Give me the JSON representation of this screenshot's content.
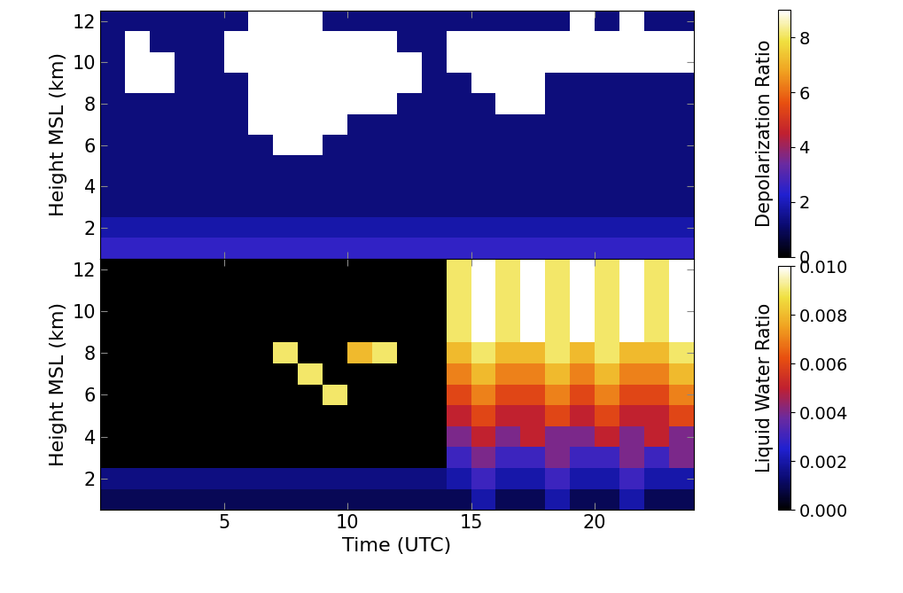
{
  "chart_data": [
    {
      "type": "heatmap",
      "ylabel": "Height MSL (km)",
      "tick_labels": "y",
      "xlim": [
        0,
        24
      ],
      "ylim": [
        0.5,
        12.5
      ],
      "xticks": [
        5,
        10,
        15,
        20
      ],
      "yticks": [
        2,
        4,
        6,
        8,
        10,
        12
      ],
      "time_edges": [
        0,
        1,
        2,
        3,
        4,
        5,
        6,
        7,
        8,
        9,
        10,
        11,
        12,
        13,
        14,
        15,
        16,
        17,
        18,
        19,
        20,
        21,
        22,
        23,
        24
      ],
      "height_edges": [
        0.5,
        1.5,
        2.5,
        3.5,
        4.5,
        5.5,
        6.5,
        7.5,
        8.5,
        9.5,
        10.5,
        11.5,
        12.5
      ],
      "cells": [
        [
          2.5,
          2.5,
          2.5,
          2.5,
          2.5,
          2.5,
          2.5,
          2.5,
          2.5,
          2.5,
          2.5,
          2.5,
          2.5,
          2.5,
          2.5,
          2.5,
          2.5,
          2.5,
          2.5,
          2.5,
          2.5,
          2.5,
          2.5,
          2.5
        ],
        [
          1.8,
          1.8,
          1.8,
          1.8,
          1.8,
          1.8,
          1.8,
          1.8,
          1.8,
          1.8,
          1.8,
          1.8,
          1.8,
          1.8,
          1.8,
          1.8,
          1.8,
          1.8,
          1.8,
          1.8,
          1.8,
          1.8,
          1.8,
          1.8
        ],
        [
          1.3,
          1.3,
          1.3,
          1.3,
          1.3,
          1.3,
          1.3,
          1.3,
          1.3,
          1.3,
          1.3,
          1.3,
          1.3,
          1.3,
          1.3,
          1.3,
          1.3,
          1.3,
          1.3,
          1.3,
          1.3,
          1.3,
          1.3,
          1.3
        ],
        [
          1.3,
          1.3,
          1.3,
          1.3,
          1.3,
          1.3,
          1.3,
          1.3,
          1.3,
          1.3,
          1.3,
          1.3,
          1.3,
          1.3,
          1.3,
          1.3,
          1.3,
          1.3,
          1.3,
          1.3,
          1.3,
          1.3,
          1.3,
          1.3
        ],
        [
          1.3,
          1.3,
          1.3,
          1.3,
          1.3,
          1.3,
          1.3,
          1.3,
          1.3,
          1.3,
          1.3,
          1.3,
          1.3,
          1.3,
          1.3,
          1.3,
          1.3,
          1.3,
          1.3,
          1.3,
          1.3,
          1.3,
          1.3,
          1.3
        ],
        [
          1.3,
          1.3,
          1.3,
          1.3,
          1.3,
          1.3,
          1.3,
          9,
          9,
          1.3,
          1.3,
          1.3,
          1.3,
          1.3,
          1.3,
          1.3,
          1.3,
          1.3,
          1.3,
          1.3,
          1.3,
          1.3,
          1.3,
          1.3
        ],
        [
          1.3,
          1.3,
          1.3,
          1.3,
          1.3,
          1.3,
          9,
          9,
          9,
          9,
          1.3,
          1.3,
          1.3,
          1.3,
          1.3,
          1.3,
          1.3,
          1.3,
          1.3,
          1.3,
          1.3,
          1.3,
          1.3,
          1.3
        ],
        [
          1.3,
          1.3,
          1.3,
          1.3,
          1.3,
          1.3,
          9,
          9,
          9,
          9,
          9,
          9,
          1.3,
          1.3,
          1.3,
          1.3,
          9,
          9,
          1.3,
          1.3,
          1.3,
          1.3,
          1.3,
          1.3
        ],
        [
          1.3,
          9,
          9,
          1.3,
          1.3,
          1.3,
          9,
          9,
          9,
          9,
          9,
          9,
          9,
          1.3,
          1.3,
          9,
          9,
          9,
          1.3,
          1.3,
          1.3,
          1.3,
          1.3,
          1.3
        ],
        [
          1.3,
          9,
          9,
          1.3,
          1.3,
          9,
          9,
          9,
          9,
          9,
          9,
          9,
          9,
          1.3,
          9,
          9,
          9,
          9,
          9,
          9,
          9,
          9,
          9,
          9
        ],
        [
          1.3,
          9,
          1.3,
          1.3,
          1.3,
          9,
          9,
          9,
          9,
          9,
          9,
          9,
          1.3,
          1.3,
          9,
          9,
          9,
          9,
          9,
          9,
          9,
          9,
          9,
          9
        ],
        [
          1.3,
          1.3,
          1.3,
          1.3,
          1.3,
          1.3,
          9,
          9,
          9,
          1.3,
          1.3,
          1.3,
          1.3,
          1.3,
          1.3,
          1.3,
          1.3,
          1.3,
          1.3,
          9,
          1.3,
          9,
          1.3,
          1.3
        ]
      ],
      "colorbar": {
        "label": "Depolarization Ratio",
        "range": [
          0,
          9
        ],
        "ticks": [
          0,
          2,
          4,
          6,
          8
        ]
      }
    },
    {
      "type": "heatmap",
      "xlabel": "Time (UTC)",
      "ylabel": "Height MSL (km)",
      "xlim": [
        0,
        24
      ],
      "ylim": [
        0.5,
        12.5
      ],
      "xticks": [
        5,
        10,
        15,
        20
      ],
      "yticks": [
        2,
        4,
        6,
        8,
        10,
        12
      ],
      "time_edges": [
        0,
        1,
        2,
        3,
        4,
        5,
        6,
        7,
        8,
        9,
        10,
        11,
        12,
        13,
        14,
        15,
        16,
        17,
        18,
        19,
        20,
        21,
        22,
        23,
        24
      ],
      "height_edges": [
        0.5,
        1.5,
        2.5,
        3.5,
        4.5,
        5.5,
        6.5,
        7.5,
        8.5,
        9.5,
        10.5,
        11.5,
        12.5
      ],
      "cells": [
        [
          0.001,
          0.001,
          0.001,
          0.001,
          0.001,
          0.001,
          0.001,
          0.001,
          0.001,
          0.001,
          0.001,
          0.001,
          0.001,
          0.001,
          0.001,
          0.002,
          0.001,
          0.001,
          0.002,
          0.001,
          0.001,
          0.002,
          0.001,
          0.001
        ],
        [
          0.0015,
          0.0015,
          0.0015,
          0.0015,
          0.0015,
          0.0015,
          0.0015,
          0.0015,
          0.0015,
          0.0015,
          0.0015,
          0.0015,
          0.0015,
          0.0015,
          0.002,
          0.003,
          0.002,
          0.002,
          0.003,
          0.002,
          0.002,
          0.003,
          0.002,
          0.002
        ],
        [
          0,
          0,
          0,
          0,
          0,
          0,
          0,
          0,
          0,
          0,
          0,
          0,
          0,
          0,
          0.003,
          0.004,
          0.003,
          0.003,
          0.004,
          0.003,
          0.003,
          0.004,
          0.003,
          0.004
        ],
        [
          0,
          0,
          0,
          0,
          0,
          0,
          0,
          0,
          0,
          0,
          0,
          0,
          0,
          0,
          0.004,
          0.005,
          0.004,
          0.005,
          0.004,
          0.004,
          0.005,
          0.004,
          0.005,
          0.004
        ],
        [
          0,
          0,
          0,
          0,
          0,
          0,
          0,
          0,
          0,
          0,
          0,
          0,
          0,
          0,
          0.005,
          0.006,
          0.005,
          0.005,
          0.006,
          0.005,
          0.006,
          0.005,
          0.005,
          0.006
        ],
        [
          0,
          0,
          0,
          0,
          0,
          0,
          0,
          0,
          0,
          0.009,
          0,
          0,
          0,
          0,
          0.006,
          0.007,
          0.006,
          0.006,
          0.007,
          0.006,
          0.007,
          0.006,
          0.006,
          0.007
        ],
        [
          0,
          0,
          0,
          0,
          0,
          0,
          0,
          0,
          0.009,
          0,
          0,
          0,
          0,
          0,
          0.007,
          0.008,
          0.007,
          0.007,
          0.008,
          0.007,
          0.008,
          0.007,
          0.007,
          0.008
        ],
        [
          0,
          0,
          0,
          0,
          0,
          0,
          0,
          0.009,
          0,
          0,
          0.008,
          0.009,
          0,
          0,
          0.008,
          0.009,
          0.008,
          0.008,
          0.009,
          0.008,
          0.009,
          0.008,
          0.008,
          0.009
        ],
        [
          0,
          0,
          0,
          0,
          0,
          0,
          0,
          0,
          0,
          0,
          0,
          0,
          0,
          0,
          0.009,
          0.01,
          0.009,
          0.01,
          0.009,
          0.01,
          0.009,
          0.01,
          0.009,
          0.01
        ],
        [
          0,
          0,
          0,
          0,
          0,
          0,
          0,
          0,
          0,
          0,
          0,
          0,
          0,
          0,
          0.009,
          0.01,
          0.009,
          0.01,
          0.009,
          0.01,
          0.009,
          0.01,
          0.009,
          0.01
        ],
        [
          0,
          0,
          0,
          0,
          0,
          0,
          0,
          0,
          0,
          0,
          0,
          0,
          0,
          0,
          0.009,
          0.01,
          0.009,
          0.01,
          0.009,
          0.01,
          0.009,
          0.01,
          0.009,
          0.01
        ],
        [
          0,
          0,
          0,
          0,
          0,
          0,
          0,
          0,
          0,
          0,
          0,
          0,
          0,
          0,
          0.009,
          0.01,
          0.009,
          0.01,
          0.009,
          0.01,
          0.009,
          0.01,
          0.009,
          0.01
        ]
      ],
      "colorbar": {
        "label": "Liquid Water Ratio",
        "range": [
          0,
          0.01
        ],
        "ticks": [
          {
            "value": 0,
            "label": "0.000"
          },
          {
            "value": 0.002,
            "label": "0.002"
          },
          {
            "value": 0.004,
            "label": "0.004"
          },
          {
            "value": 0.006,
            "label": "0.006"
          },
          {
            "value": 0.008,
            "label": "0.008"
          },
          {
            "value": 0.01,
            "label": "0.010"
          }
        ]
      }
    }
  ]
}
